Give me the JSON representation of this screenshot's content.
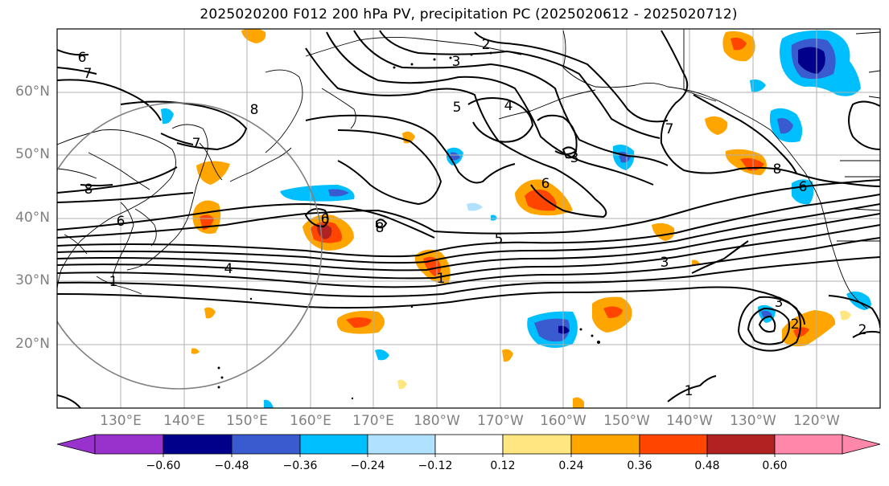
{
  "title": "2025020200 F012 200 hPa PV, precipitation PC (2025020612 - 2025020712)",
  "latitude_labels": [
    "60°N",
    "50°N",
    "40°N",
    "30°N",
    "20°N"
  ],
  "longitude_labels": [
    "130°E",
    "140°E",
    "150°E",
    "160°E",
    "170°E",
    "180°W",
    "170°W",
    "160°W",
    "150°W",
    "140°W",
    "130°W",
    "120°W"
  ],
  "colorbar": {
    "ticks": [
      "−0.60",
      "−0.48",
      "−0.36",
      "−0.24",
      "−0.12",
      "0.12",
      "0.24",
      "0.36",
      "0.48",
      "0.60"
    ],
    "colors": [
      "#9932cc",
      "#00008b",
      "#3a5bcf",
      "#00bfff",
      "#b0e2ff",
      "#ffffff",
      "#ffe680",
      "#ffa500",
      "#ff4500",
      "#b22222",
      "#ff88aa"
    ]
  },
  "contour_labels": [
    "6",
    "7",
    "8",
    "6",
    "1",
    "4",
    "7",
    "8",
    "6",
    "8",
    "2",
    "3",
    "4",
    "5",
    "3",
    "6",
    "5",
    "7",
    "3",
    "8",
    "6",
    "3",
    "2",
    "1",
    "1",
    "2"
  ]
}
